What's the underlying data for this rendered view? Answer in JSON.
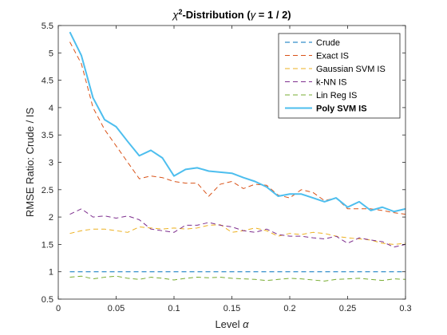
{
  "chart_data": {
    "type": "line",
    "title_prefix": "χ",
    "title_sup": "2",
    "title_mid": "-Distribution (",
    "title_gamma": "γ",
    "title_suffix": " = 1 / 2)",
    "xlabel_text": "Level ",
    "xlabel_symbol": "α",
    "ylabel": "RMSE Ratio: Crude / IS",
    "xlim": [
      0,
      0.3
    ],
    "ylim": [
      0.5,
      5.5
    ],
    "xticks": [
      0,
      0.05,
      0.1,
      0.15,
      0.2,
      0.25,
      0.3
    ],
    "xtick_labels": [
      "0",
      "0.05",
      "0.1",
      "0.15",
      "0.2",
      "0.25",
      "0.3"
    ],
    "yticks": [
      0.5,
      1,
      1.5,
      2,
      2.5,
      3,
      3.5,
      4,
      4.5,
      5,
      5.5
    ],
    "ytick_labels": [
      "0.5",
      "1",
      "1.5",
      "2",
      "2.5",
      "3",
      "3.5",
      "4",
      "4.5",
      "5",
      "5.5"
    ],
    "grid": false,
    "legend_position": "top-right",
    "x": [
      0.01,
      0.02,
      0.03,
      0.04,
      0.05,
      0.06,
      0.07,
      0.08,
      0.09,
      0.1,
      0.11,
      0.12,
      0.13,
      0.14,
      0.15,
      0.16,
      0.17,
      0.18,
      0.19,
      0.2,
      0.21,
      0.22,
      0.23,
      0.24,
      0.25,
      0.26,
      0.27,
      0.28,
      0.29,
      0.3
    ],
    "series": [
      {
        "name": "Crude",
        "color": "#0072BD",
        "style": "dashed",
        "values": [
          1,
          1,
          1,
          1,
          1,
          1,
          1,
          1,
          1,
          1,
          1,
          1,
          1,
          1,
          1,
          1,
          1,
          1,
          1,
          1,
          1,
          1,
          1,
          1,
          1,
          1,
          1,
          1,
          1,
          1
        ]
      },
      {
        "name": "Exact IS",
        "color": "#D95319",
        "style": "dashed",
        "values": [
          5.2,
          4.8,
          4.0,
          3.6,
          3.3,
          3.0,
          2.7,
          2.75,
          2.72,
          2.65,
          2.62,
          2.62,
          2.38,
          2.6,
          2.65,
          2.52,
          2.6,
          2.58,
          2.4,
          2.35,
          2.5,
          2.45,
          2.3,
          2.35,
          2.15,
          2.15,
          2.15,
          2.12,
          2.08,
          2.05
        ]
      },
      {
        "name": "Gaussian SVM IS",
        "color": "#EDB120",
        "style": "dashed",
        "values": [
          1.7,
          1.75,
          1.78,
          1.78,
          1.75,
          1.72,
          1.82,
          1.8,
          1.78,
          1.8,
          1.78,
          1.8,
          1.85,
          1.86,
          1.72,
          1.75,
          1.8,
          1.75,
          1.65,
          1.7,
          1.68,
          1.72,
          1.7,
          1.65,
          1.62,
          1.6,
          1.58,
          1.52,
          1.5,
          1.52
        ]
      },
      {
        "name": "k-NN IS",
        "color": "#7E2F8E",
        "style": "dashed",
        "values": [
          2.05,
          2.15,
          2.0,
          2.02,
          1.98,
          2.02,
          1.95,
          1.78,
          1.75,
          1.72,
          1.85,
          1.85,
          1.9,
          1.85,
          1.82,
          1.75,
          1.72,
          1.78,
          1.68,
          1.65,
          1.65,
          1.62,
          1.6,
          1.65,
          1.52,
          1.62,
          1.58,
          1.55,
          1.45,
          1.5
        ]
      },
      {
        "name": "Lin Reg IS",
        "color": "#77AC30",
        "style": "dashed",
        "values": [
          0.9,
          0.92,
          0.87,
          0.9,
          0.92,
          0.88,
          0.86,
          0.9,
          0.88,
          0.85,
          0.88,
          0.9,
          0.89,
          0.9,
          0.88,
          0.87,
          0.86,
          0.84,
          0.86,
          0.88,
          0.87,
          0.85,
          0.83,
          0.86,
          0.87,
          0.88,
          0.86,
          0.84,
          0.87,
          0.86
        ]
      },
      {
        "name": "Poly SVM IS",
        "color": "#4DBEEE",
        "style": "solid",
        "bold_label": true,
        "values": [
          5.38,
          4.95,
          4.18,
          3.78,
          3.65,
          3.38,
          3.12,
          3.22,
          3.08,
          2.75,
          2.87,
          2.9,
          2.84,
          2.82,
          2.8,
          2.72,
          2.65,
          2.55,
          2.38,
          2.42,
          2.42,
          2.35,
          2.28,
          2.35,
          2.18,
          2.28,
          2.12,
          2.18,
          2.1,
          2.15
        ]
      }
    ]
  }
}
